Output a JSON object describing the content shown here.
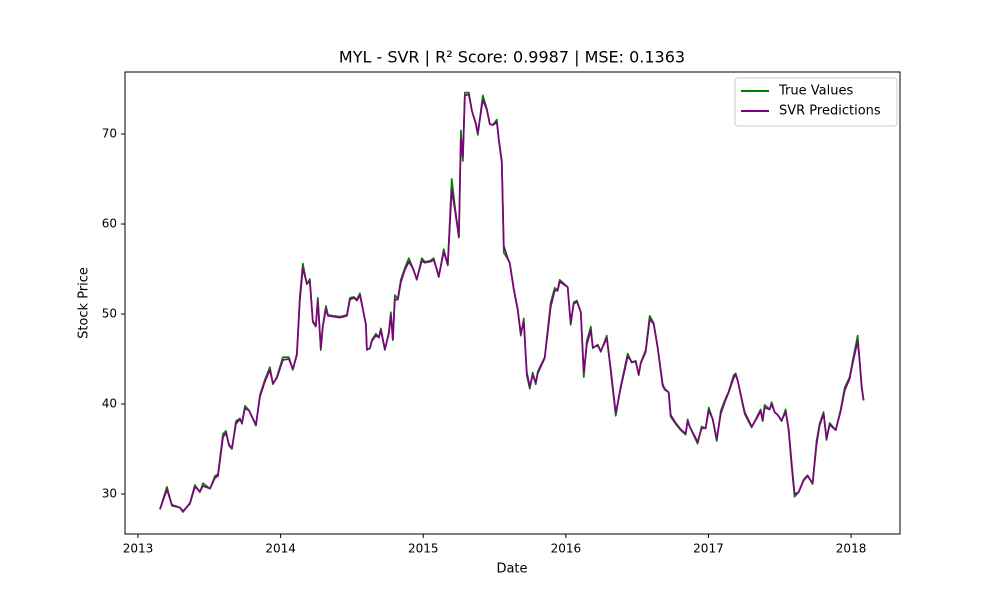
{
  "chart_data": {
    "type": "line",
    "title": "MYL - SVR | R² Score: 0.9987 | MSE: 0.1363",
    "x_label": "Date",
    "y_label": "Stock Price",
    "x": [
      2013.154,
      2013.203,
      2013.238,
      2013.294,
      2013.315,
      2013.364,
      2013.399,
      2013.434,
      2013.456,
      2013.505,
      2013.54,
      2013.561,
      2013.596,
      2013.617,
      2013.638,
      2013.659,
      2013.687,
      2013.715,
      2013.729,
      2013.75,
      2013.778,
      2013.827,
      2013.855,
      2013.89,
      2013.925,
      2013.946,
      2013.974,
      2014.016,
      2014.058,
      2014.086,
      2014.114,
      2014.135,
      2014.156,
      2014.184,
      2014.205,
      2014.226,
      2014.247,
      2014.261,
      2014.282,
      2014.296,
      2014.318,
      2014.332,
      2014.416,
      2014.465,
      2014.486,
      2014.514,
      2014.535,
      2014.556,
      2014.598,
      2014.605,
      2014.626,
      2014.64,
      2014.668,
      2014.689,
      2014.703,
      2014.731,
      2014.759,
      2014.773,
      2014.787,
      2014.801,
      2014.822,
      2014.843,
      2014.871,
      2014.899,
      2014.927,
      2014.955,
      2014.99,
      2015.011,
      2015.046,
      2015.074,
      2015.095,
      2015.109,
      2015.144,
      2015.172,
      2015.2,
      2015.222,
      2015.25,
      2015.264,
      2015.278,
      2015.292,
      2015.32,
      2015.341,
      2015.369,
      2015.383,
      2015.418,
      2015.446,
      2015.467,
      2015.488,
      2015.516,
      2015.53,
      2015.551,
      2015.565,
      2015.586,
      2015.607,
      2015.635,
      2015.663,
      2015.684,
      2015.705,
      2015.726,
      2015.747,
      2015.768,
      2015.789,
      2015.803,
      2015.852,
      2015.894,
      2015.922,
      2015.943,
      2015.957,
      2016.013,
      2016.034,
      2016.055,
      2016.077,
      2016.105,
      2016.126,
      2016.147,
      2016.175,
      2016.189,
      2016.224,
      2016.245,
      2016.287,
      2016.315,
      2016.35,
      2016.385,
      2016.434,
      2016.462,
      2016.49,
      2016.511,
      2016.525,
      2016.56,
      2016.588,
      2016.616,
      2016.644,
      2016.679,
      2016.693,
      2016.721,
      2016.735,
      2016.77,
      2016.805,
      2016.84,
      2016.854,
      2016.868,
      2016.924,
      2016.952,
      2016.98,
      2017.002,
      2017.03,
      2017.058,
      2017.086,
      2017.114,
      2017.142,
      2017.177,
      2017.191,
      2017.205,
      2017.254,
      2017.303,
      2017.331,
      2017.366,
      2017.38,
      2017.394,
      2017.429,
      2017.443,
      2017.464,
      2017.485,
      2017.513,
      2017.541,
      2017.562,
      2017.583,
      2017.604,
      2017.632,
      2017.667,
      2017.695,
      2017.73,
      2017.758,
      2017.779,
      2017.807,
      2017.828,
      2017.85,
      2017.892,
      2017.927,
      2017.955,
      2017.99,
      2018.011,
      2018.046,
      2018.06,
      2018.074,
      2018.088
    ],
    "series": [
      {
        "name": "True Values",
        "color": "green",
        "values": [
          28.3,
          30.8,
          28.7,
          28.5,
          28.0,
          29.0,
          31.0,
          30.2,
          31.2,
          30.6,
          32.0,
          32.2,
          36.7,
          37.0,
          35.4,
          35.0,
          38.1,
          38.4,
          37.8,
          39.8,
          39.3,
          37.6,
          41.0,
          42.7,
          44.1,
          42.2,
          43.0,
          45.2,
          45.2,
          43.8,
          45.6,
          51.9,
          55.6,
          53.3,
          53.9,
          49.1,
          48.6,
          51.8,
          46.0,
          48.7,
          50.9,
          49.9,
          49.7,
          49.9,
          51.8,
          51.9,
          51.6,
          52.3,
          48.8,
          46.0,
          46.2,
          47.1,
          47.8,
          47.4,
          48.4,
          46.0,
          48.0,
          50.2,
          47.1,
          52.1,
          51.7,
          53.8,
          55.1,
          56.2,
          55.1,
          53.8,
          56.2,
          55.8,
          55.9,
          56.2,
          54.9,
          54.1,
          57.2,
          55.4,
          65.0,
          62.0,
          58.5,
          70.4,
          67.0,
          74.6,
          74.6,
          72.6,
          71.1,
          69.9,
          74.3,
          72.8,
          71.1,
          71.0,
          71.6,
          69.3,
          66.8,
          56.8,
          56.3,
          55.7,
          52.7,
          50.4,
          47.6,
          49.5,
          43.2,
          41.7,
          43.5,
          42.2,
          43.6,
          45.2,
          51.3,
          52.9,
          52.7,
          53.8,
          53.0,
          48.8,
          51.3,
          51.5,
          50.2,
          43.0,
          47.0,
          48.6,
          46.2,
          46.6,
          45.8,
          47.6,
          43.6,
          38.7,
          42.0,
          45.6,
          44.6,
          44.8,
          43.2,
          44.6,
          46.0,
          49.8,
          49.0,
          46.2,
          42.0,
          41.6,
          41.3,
          38.6,
          37.8,
          37.1,
          36.6,
          38.3,
          37.5,
          35.6,
          37.5,
          37.3,
          39.6,
          38.3,
          35.9,
          39.2,
          40.4,
          41.4,
          43.2,
          43.4,
          42.6,
          38.9,
          37.4,
          38.3,
          39.4,
          38.1,
          39.9,
          39.4,
          40.2,
          39.1,
          38.8,
          38.1,
          39.4,
          37.1,
          33.1,
          29.7,
          30.2,
          31.6,
          32.1,
          31.1,
          35.9,
          37.8,
          39.1,
          36.0,
          37.9,
          37.1,
          39.4,
          41.8,
          43.0,
          44.8,
          47.6,
          44.8,
          41.8,
          40.4
        ]
      },
      {
        "name": "SVR Predictions",
        "color": "purple",
        "values": [
          28.3,
          30.5,
          28.8,
          28.5,
          28.1,
          28.9,
          30.8,
          30.3,
          30.9,
          30.6,
          31.8,
          32.0,
          36.3,
          36.8,
          35.5,
          35.1,
          37.8,
          38.3,
          37.9,
          39.5,
          39.3,
          37.7,
          40.8,
          42.5,
          43.8,
          42.3,
          42.9,
          44.9,
          45.0,
          43.9,
          45.4,
          51.5,
          55.1,
          53.4,
          53.6,
          49.2,
          48.7,
          51.5,
          46.2,
          48.6,
          50.6,
          49.8,
          49.6,
          49.8,
          51.6,
          51.8,
          51.5,
          52.1,
          48.9,
          46.1,
          46.2,
          47.0,
          47.6,
          47.4,
          48.2,
          46.1,
          47.8,
          49.9,
          47.2,
          51.6,
          51.6,
          53.5,
          54.9,
          55.8,
          55.1,
          53.9,
          55.9,
          55.7,
          55.8,
          56.0,
          55.0,
          54.2,
          56.9,
          55.5,
          63.8,
          61.6,
          58.6,
          69.5,
          67.5,
          74.3,
          74.4,
          72.6,
          71.2,
          70.1,
          73.8,
          72.7,
          71.1,
          71.0,
          71.3,
          69.4,
          67.0,
          57.6,
          56.5,
          55.6,
          52.8,
          50.5,
          47.8,
          49.1,
          43.6,
          41.9,
          43.2,
          42.4,
          43.4,
          45.1,
          50.8,
          52.6,
          52.6,
          53.6,
          53.0,
          49.0,
          51.1,
          51.4,
          50.2,
          43.5,
          46.6,
          48.2,
          46.3,
          46.5,
          45.9,
          47.3,
          43.9,
          39.0,
          41.8,
          45.3,
          44.7,
          44.7,
          43.3,
          44.5,
          45.8,
          49.4,
          48.9,
          46.3,
          42.2,
          41.7,
          41.3,
          38.8,
          37.9,
          37.2,
          36.7,
          38.1,
          37.5,
          35.8,
          37.3,
          37.3,
          39.3,
          38.3,
          36.1,
          38.9,
          40.2,
          41.3,
          42.9,
          43.3,
          42.6,
          39.1,
          37.5,
          38.2,
          39.2,
          38.2,
          39.6,
          39.4,
          40.0,
          39.1,
          38.8,
          38.2,
          39.1,
          37.3,
          33.5,
          30.0,
          30.2,
          31.5,
          32.0,
          31.2,
          35.5,
          37.6,
          38.9,
          36.2,
          37.7,
          37.1,
          39.2,
          41.5,
          42.8,
          44.5,
          47.0,
          44.8,
          42.0,
          40.4
        ]
      }
    ],
    "xlim": [
      2012.909,
      2018.343
    ],
    "xticks": [
      2013,
      2014,
      2015,
      2016,
      2017,
      2018
    ],
    "ylim": [
      25.56,
      76.89
    ],
    "yticks": [
      30,
      40,
      50,
      60,
      70
    ],
    "legend": "upper right",
    "grid": false
  }
}
